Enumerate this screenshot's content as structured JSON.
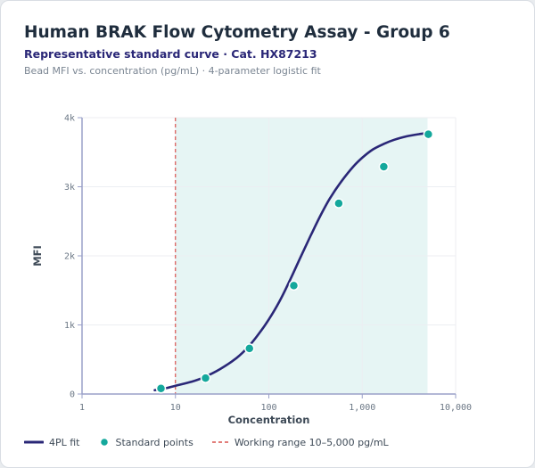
{
  "header": {
    "title": "Human BRAK Flow Cytometry Assay - Group 6",
    "subtitle": "Representative standard curve · Cat. HX87213",
    "caption": "Bead MFI vs. concentration (pg/mL) · 4-parameter logistic fit"
  },
  "legend": {
    "fit_label": "4PL fit",
    "points_label": "Standard points",
    "range_label": "Working range 10–5,000 pg/mL"
  },
  "colors": {
    "curve": "#2a2777",
    "points": "#14a89c",
    "range_line": "#d9534f",
    "range_fill": "#e6f5f4",
    "axis": "#9aa0c8",
    "grid": "#eceef2"
  },
  "chart_data": {
    "type": "scatter",
    "xscale": "log",
    "xlabel": "Concentration",
    "ylabel": "MFI",
    "xlim": [
      1,
      10000
    ],
    "ylim": [
      0,
      4000
    ],
    "x_ticks": [
      1,
      10,
      100,
      1000,
      10000
    ],
    "x_tick_labels": [
      "1",
      "10",
      "100",
      "1,000",
      "10,000"
    ],
    "y_ticks": [
      0,
      1000,
      2000,
      3000,
      4000
    ],
    "y_tick_labels": [
      "0",
      "1k",
      "2k",
      "3k",
      "4k"
    ],
    "grid": true,
    "legend_position": "bottom",
    "working_range": [
      10,
      5000
    ],
    "series": [
      {
        "name": "Standard points",
        "kind": "scatter",
        "x": [
          7,
          21,
          62,
          185,
          560,
          1700,
          5100
        ],
        "y": [
          80,
          230,
          660,
          1570,
          2760,
          3290,
          3760
        ]
      },
      {
        "name": "4PL fit",
        "kind": "line",
        "x": [
          6,
          8,
          10,
          15,
          20,
          30,
          45,
          60,
          80,
          100,
          130,
          170,
          220,
          280,
          350,
          450,
          600,
          800,
          1000,
          1300,
          1700,
          2200,
          3000,
          4000,
          5000
        ],
        "y": [
          55,
          85,
          120,
          180,
          240,
          360,
          520,
          680,
          890,
          1080,
          1340,
          1660,
          1990,
          2290,
          2560,
          2830,
          3080,
          3290,
          3420,
          3540,
          3620,
          3680,
          3730,
          3760,
          3775
        ]
      }
    ]
  }
}
